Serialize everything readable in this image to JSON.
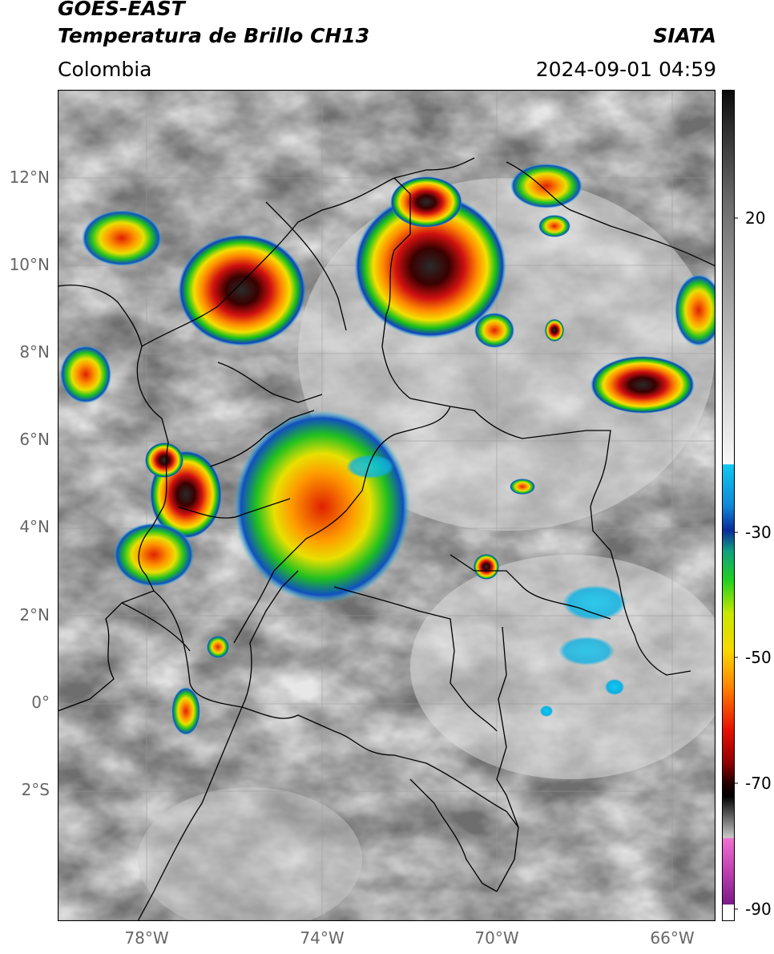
{
  "header": {
    "satellite": "GOES-EAST",
    "product": "Temperatura de Brillo CH13",
    "region": "Colombia",
    "organization": "SIATA",
    "timestamp": "2024-09-01 04:59"
  },
  "map": {
    "lat_labels": [
      "12°N",
      "10°N",
      "8°N",
      "6°N",
      "4°N",
      "2°N",
      "0°",
      "2°S"
    ],
    "lon_labels": [
      "78°W",
      "74°W",
      "70°W",
      "66°W"
    ]
  },
  "colorbar": {
    "tick_labels": [
      "20",
      "-30",
      "-50",
      "-70",
      "-90"
    ]
  }
}
